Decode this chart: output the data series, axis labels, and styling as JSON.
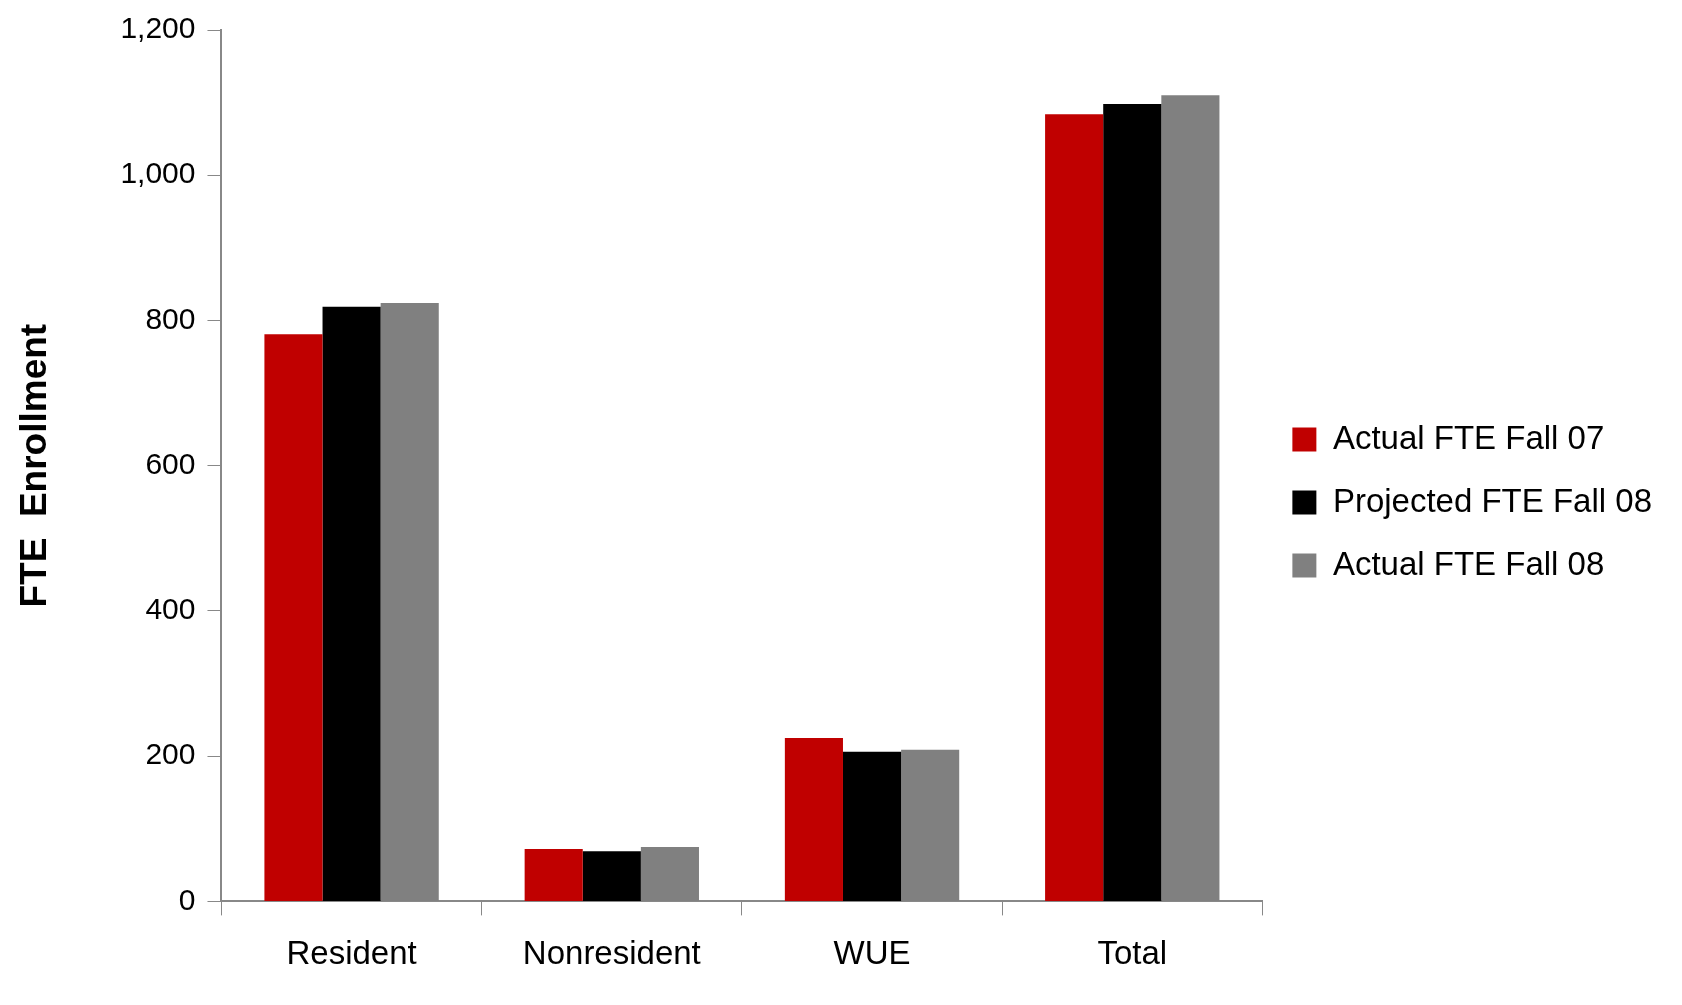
{
  "chart_data": {
    "type": "bar",
    "ylabel": "FTE  Enrollment",
    "categories": [
      "Resident",
      "Nonresident",
      "WUE",
      "Total"
    ],
    "series": [
      {
        "name": "Actual FTE Fall 07",
        "color": "#c00000",
        "values": [
          781,
          72,
          225,
          1084
        ]
      },
      {
        "name": "Projected FTE Fall 08",
        "color": "#000000",
        "values": [
          819,
          69,
          206,
          1098
        ]
      },
      {
        "name": "Actual FTE Fall 08",
        "color": "#808080",
        "values": [
          824,
          75,
          209,
          1110
        ]
      }
    ],
    "ylim": [
      0,
      1200
    ],
    "yticks": [
      0,
      200,
      400,
      600,
      800,
      {
        "value": 1000,
        "label": "1,000"
      },
      {
        "value": 1200,
        "label": "1,200"
      }
    ],
    "grid": false,
    "legend": "right"
  }
}
